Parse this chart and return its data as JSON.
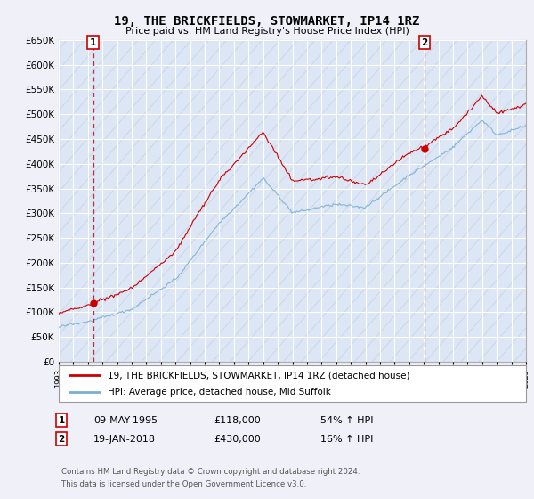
{
  "title": "19, THE BRICKFIELDS, STOWMARKET, IP14 1RZ",
  "subtitle": "Price paid vs. HM Land Registry's House Price Index (HPI)",
  "legend_line1": "19, THE BRICKFIELDS, STOWMARKET, IP14 1RZ (detached house)",
  "legend_line2": "HPI: Average price, detached house, Mid Suffolk",
  "sale1_date": "09-MAY-1995",
  "sale1_price": 118000,
  "sale1_label": "54% ↑ HPI",
  "sale2_date": "19-JAN-2018",
  "sale2_price": 430000,
  "sale2_label": "16% ↑ HPI",
  "footer": "Contains HM Land Registry data © Crown copyright and database right 2024.\nThis data is licensed under the Open Government Licence v3.0.",
  "red_color": "#cc0000",
  "blue_color": "#7aafd4",
  "background_color": "#f0f0f8",
  "plot_bg_color": "#dce6f5",
  "grid_color": "#ffffff",
  "hatch_color": "#c8d4e8",
  "ylim": [
    0,
    650000
  ],
  "yticks": [
    0,
    50000,
    100000,
    150000,
    200000,
    250000,
    300000,
    350000,
    400000,
    450000,
    500000,
    550000,
    600000,
    650000
  ],
  "xmin": 1993,
  "xmax": 2025,
  "sale1_x": 1995.36,
  "sale2_x": 2018.05
}
